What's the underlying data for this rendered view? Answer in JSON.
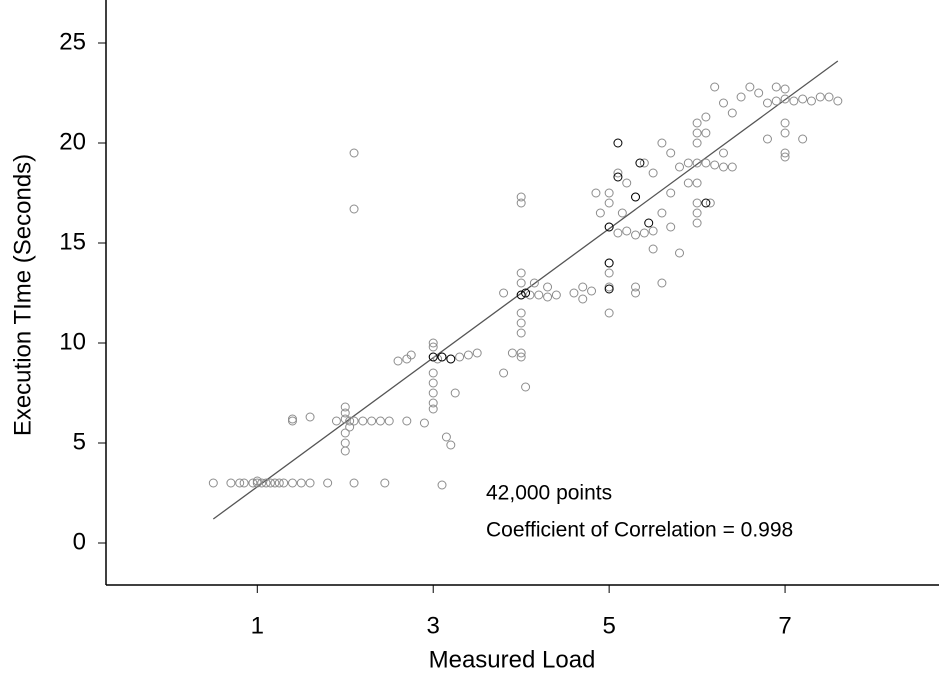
{
  "chart_data": {
    "type": "scatter",
    "xlabel": "Measured Load",
    "ylabel": "Execution TIme (Seconds)",
    "annotations": [
      "42,000 points",
      "Coefficient of Correlation = 0.998"
    ],
    "xlim": [
      -0.72,
      8.75
    ],
    "ylim": [
      -2.1,
      27.15
    ],
    "xticks": [
      1,
      3,
      5,
      7
    ],
    "yticks": [
      0,
      5,
      10,
      15,
      20,
      25
    ],
    "fit_line": {
      "color": "#555555",
      "x": [
        0.5,
        7.6
      ],
      "values": [
        1.2,
        24.1
      ]
    },
    "series": [
      {
        "color": "#8c8c8c",
        "x": [
          1,
          1.05,
          1.1,
          0.95,
          0.5,
          0.7,
          0.8,
          0.85,
          1.15,
          1.2,
          1.25,
          1.3,
          1.4,
          1.5,
          1.6,
          1.8,
          2.1,
          2.45,
          1,
          2,
          2.05,
          2.1,
          2.2,
          2.3,
          2.4,
          2.5,
          2.7,
          2.9,
          1.9,
          1.4,
          1.4,
          1.6,
          2,
          2,
          2,
          2,
          2,
          2.1,
          2.1,
          2.05,
          3,
          3.05,
          3.1,
          3.2,
          3,
          3,
          3,
          3,
          3,
          3,
          3,
          2.7,
          2.75,
          2.6,
          3.3,
          3.4,
          3.5,
          3.25,
          3.15,
          3.2,
          3.1,
          3.8,
          3.9,
          4,
          4.1,
          4.2,
          4.3,
          4.4,
          4,
          4,
          4,
          4,
          4,
          4,
          4,
          4,
          4,
          4.05,
          4.15,
          4.3,
          4.6,
          4.7,
          4.8,
          3.8,
          5,
          5.1,
          5.2,
          5.3,
          5.4,
          5.5,
          5,
          5,
          5,
          5,
          5,
          5,
          4.9,
          4.85,
          5.1,
          5.2,
          5.3,
          5.4,
          5.5,
          5.6,
          5.7,
          5.6,
          5.7,
          5.8,
          5.3,
          5.3,
          5.6,
          5.15,
          5.9,
          4.7,
          5.5,
          6,
          6.1,
          6.2,
          6.3,
          6,
          6,
          6,
          6,
          6,
          6,
          6,
          5.9,
          5.8,
          6.1,
          6.1,
          6.2,
          6.3,
          6.4,
          6.5,
          6.6,
          6.7,
          6.15,
          6.3,
          6.4,
          5.7,
          7,
          7.1,
          7.2,
          7.3,
          7.4,
          7.6,
          7,
          7,
          7,
          7,
          7,
          6.9,
          6.8,
          7.5,
          7.2,
          6.8,
          6.9
        ],
        "values": [
          3,
          3,
          3,
          3,
          3,
          3,
          3,
          3,
          3,
          3,
          3,
          3,
          3,
          3,
          3,
          3,
          3,
          3,
          3.1,
          6.2,
          6.1,
          6.1,
          6.1,
          6.1,
          6.1,
          6.1,
          6.1,
          6,
          6.1,
          6.1,
          6.2,
          6.3,
          5.5,
          5,
          4.6,
          6.5,
          6.8,
          19.5,
          16.7,
          5.8,
          9.3,
          9.2,
          9.3,
          9.2,
          10,
          9.8,
          8.5,
          8,
          7.5,
          7,
          6.7,
          9.2,
          9.4,
          9.1,
          9.3,
          9.4,
          9.5,
          7.5,
          5.3,
          4.9,
          2.9,
          8.5,
          9.5,
          12.4,
          12.4,
          12.4,
          12.3,
          12.4,
          13.5,
          13,
          11.5,
          11,
          10.5,
          9.5,
          9.3,
          17.3,
          17,
          7.8,
          13,
          12.8,
          12.5,
          12.2,
          12.6,
          12.5,
          15.8,
          15.5,
          15.6,
          15.4,
          15.5,
          15.6,
          17,
          17.5,
          14,
          13.5,
          12.8,
          11.5,
          16.5,
          17.5,
          18.5,
          18,
          17.3,
          19,
          18.5,
          20,
          19.5,
          16.5,
          15.8,
          14.5,
          12.8,
          12.5,
          13,
          16.5,
          18,
          12.8,
          14.7,
          19,
          19,
          18.9,
          18.8,
          21,
          20.5,
          20,
          18,
          17,
          16.5,
          16,
          19,
          18.8,
          20.5,
          21.3,
          22.8,
          22,
          21.5,
          22.3,
          22.8,
          22.5,
          17,
          19.5,
          18.8,
          17.5,
          22.2,
          22.1,
          22.2,
          22.1,
          22.3,
          22.1,
          22.7,
          21,
          20.5,
          19.5,
          19.3,
          22.1,
          22,
          22.3,
          20.2,
          20.2,
          22.8
        ]
      },
      {
        "color": "#000000",
        "x": [
          3,
          3.1,
          3.2,
          4,
          4.05,
          5,
          5.1,
          5.3,
          5.35,
          5,
          5,
          5.45,
          5.1,
          6.1
        ],
        "values": [
          9.3,
          9.3,
          9.2,
          12.4,
          12.5,
          15.8,
          20,
          17.3,
          19,
          14,
          12.7,
          16,
          18.3,
          17
        ]
      }
    ]
  }
}
